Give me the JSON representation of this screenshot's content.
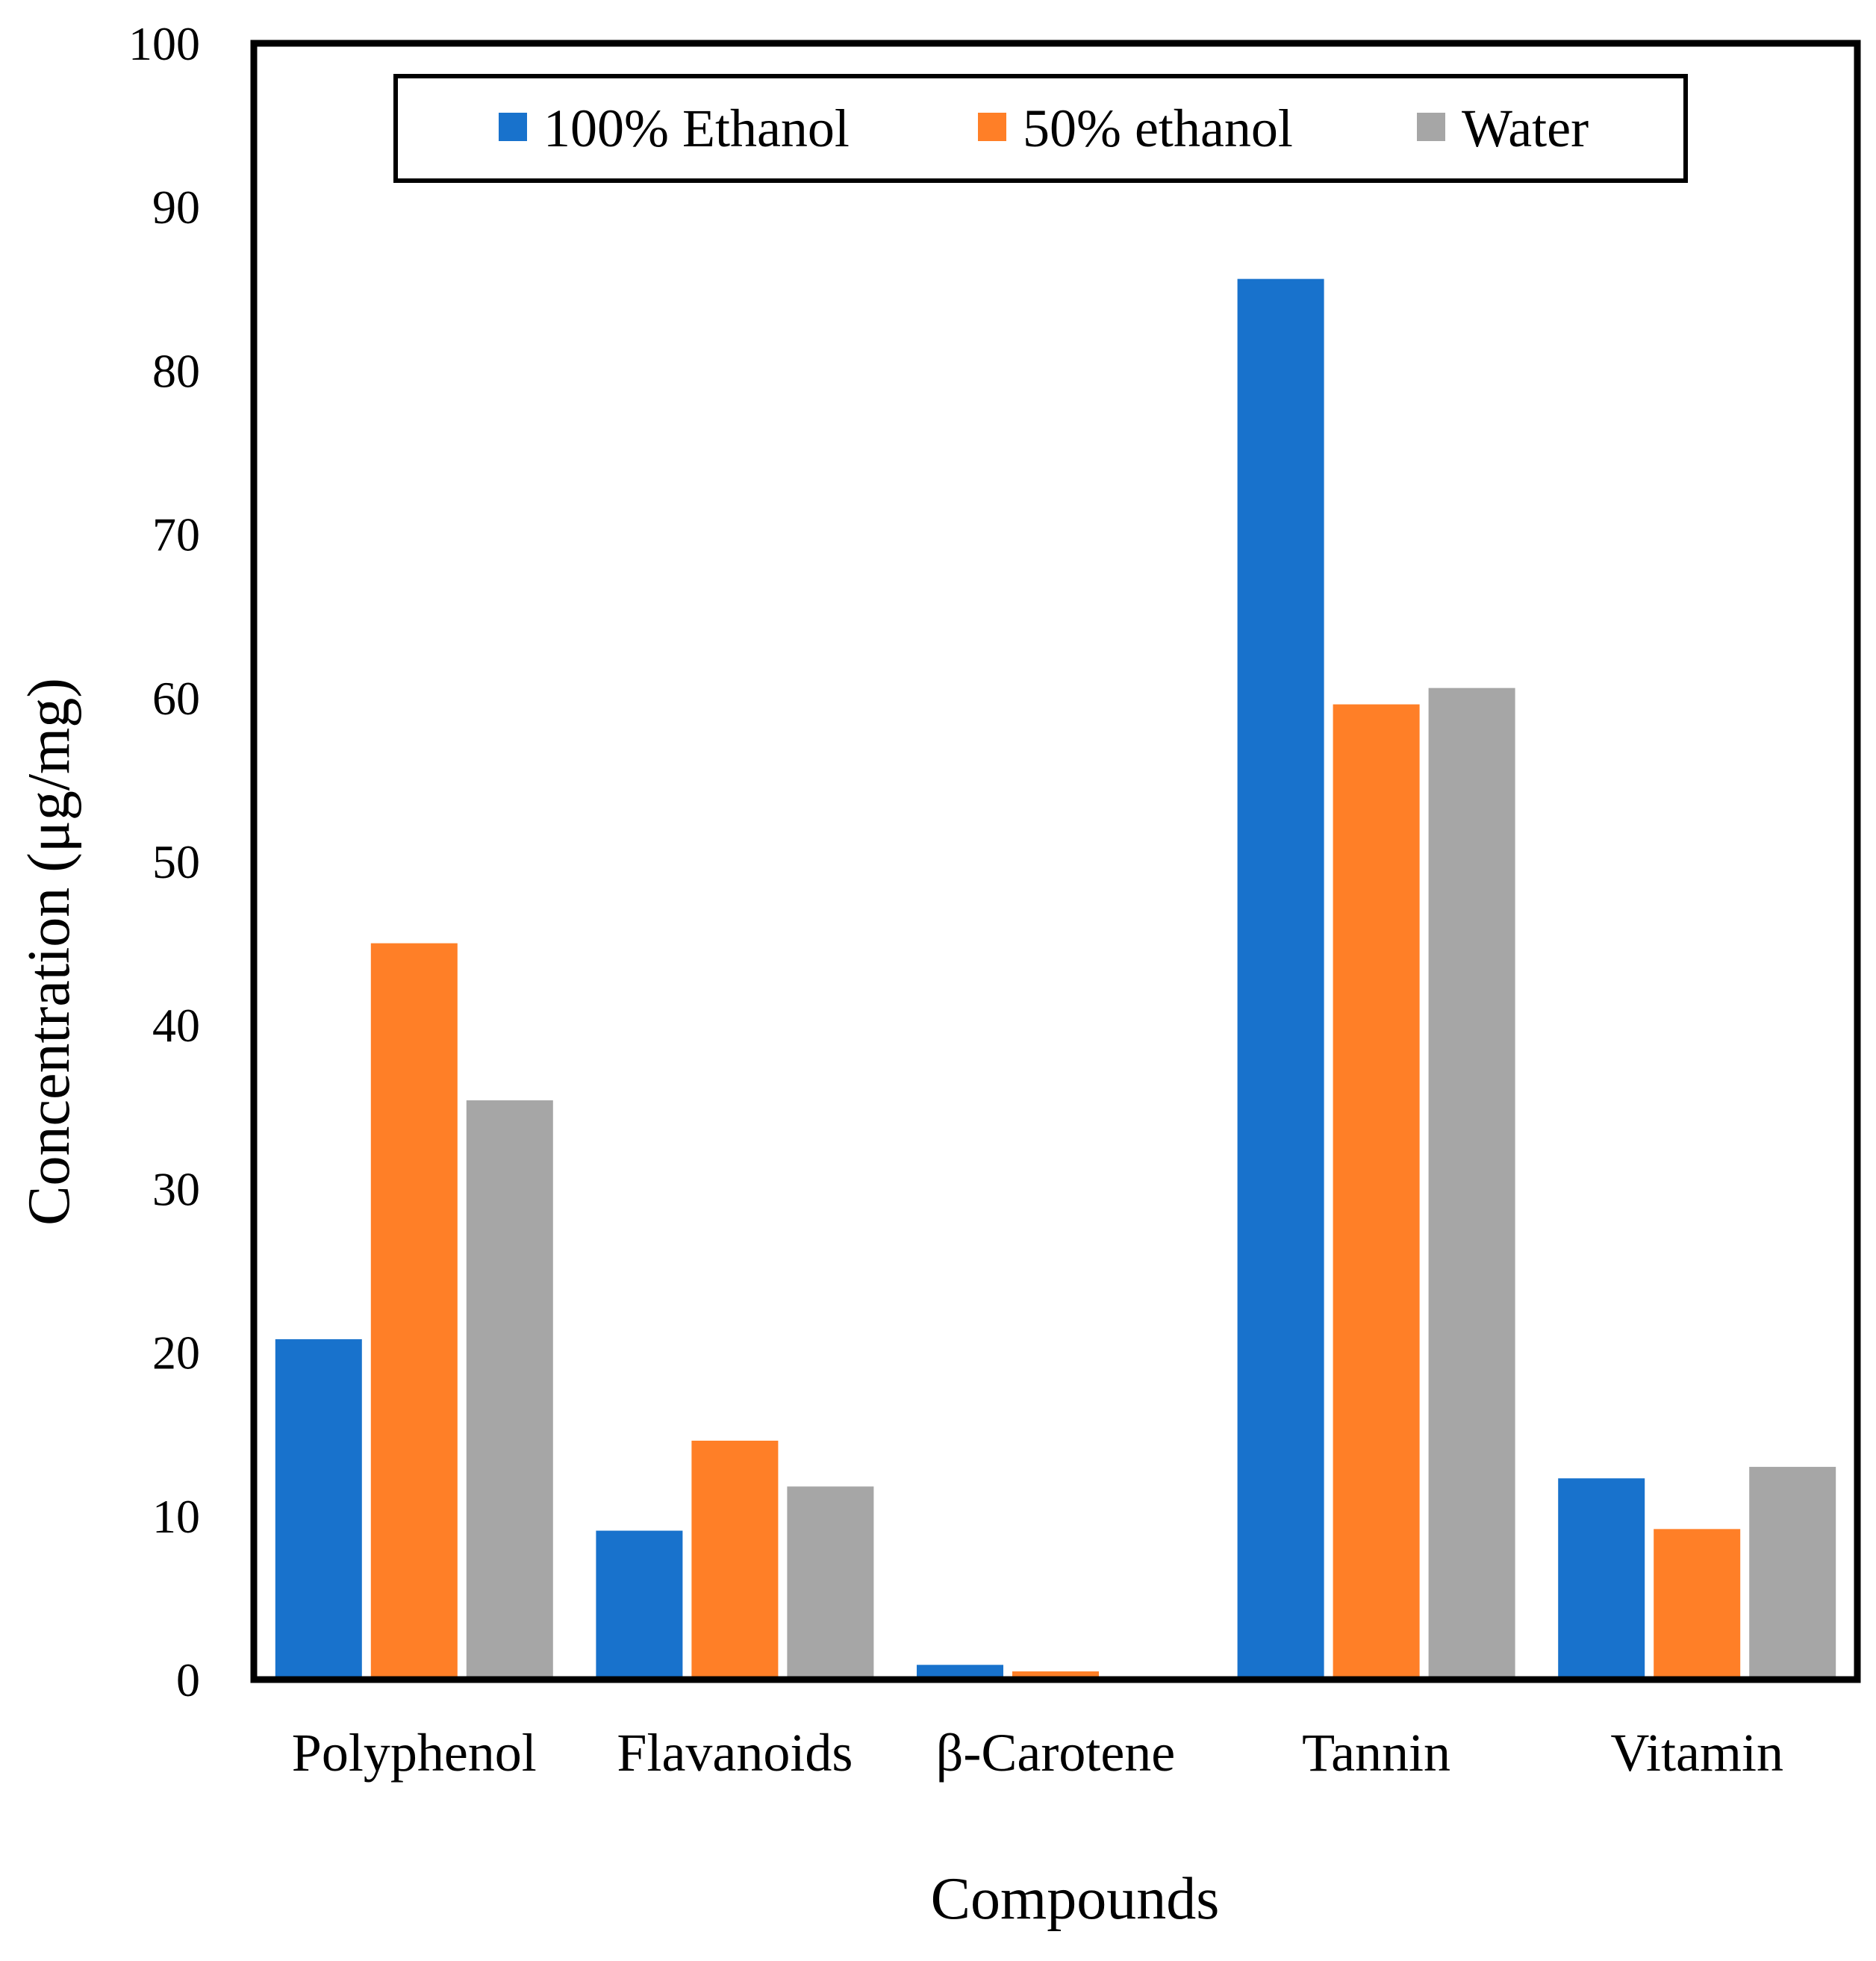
{
  "chart_data": {
    "type": "bar",
    "title": "",
    "xlabel": "Compounds",
    "ylabel": "Concentration (μg/mg)",
    "ylim": [
      0,
      100
    ],
    "yticks": [
      0,
      10,
      20,
      30,
      40,
      50,
      60,
      70,
      80,
      90,
      100
    ],
    "grid": false,
    "legend_position": "top",
    "categories": [
      "Polyphenol",
      "Flavanoids",
      "β-Carotene",
      "Tannin",
      "Vitamin"
    ],
    "series": [
      {
        "name": "100% Ethanol",
        "color": "#1872CC",
        "values": [
          20.8,
          9.1,
          0.9,
          85.6,
          12.3
        ]
      },
      {
        "name": "50% ethanol",
        "color": "#FF7F27",
        "values": [
          45.0,
          14.6,
          0.5,
          59.6,
          9.2
        ]
      },
      {
        "name": "Water",
        "color": "#A6A6A6",
        "values": [
          35.4,
          11.8,
          0.0,
          60.6,
          13.0
        ]
      }
    ]
  }
}
